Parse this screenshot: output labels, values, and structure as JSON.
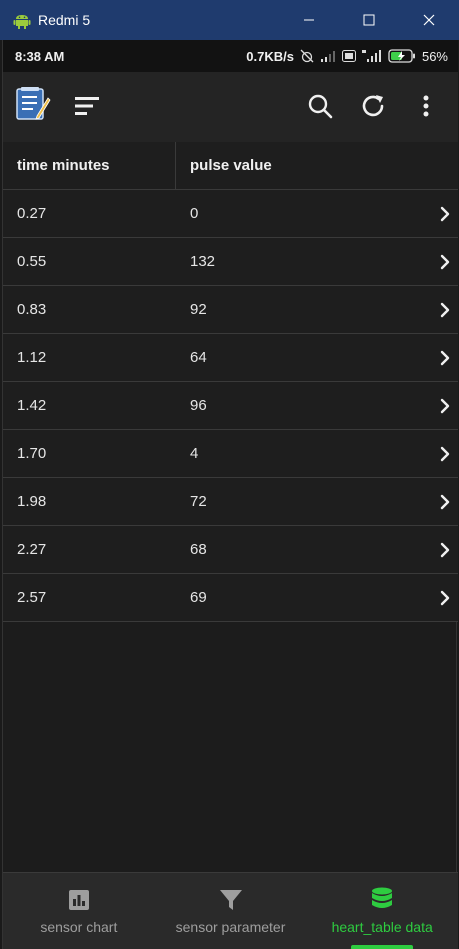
{
  "window": {
    "title": "Redmi 5",
    "icon": "android-icon",
    "controls": [
      "minimize-icon",
      "maximize-icon",
      "close-icon"
    ]
  },
  "status_bar": {
    "time": "8:38 AM",
    "speed": "0.7KB/s",
    "battery": "56%"
  },
  "app_bar": {
    "icons": [
      "app-logo-icon",
      "sort-menu-icon",
      "search-icon",
      "refresh-icon",
      "more-vert-icon"
    ]
  },
  "table": {
    "headers": [
      "time minutes",
      "pulse value"
    ],
    "rows": [
      [
        "0.27",
        "0"
      ],
      [
        "0.55",
        "132"
      ],
      [
        "0.83",
        "92"
      ],
      [
        "1.12",
        "64"
      ],
      [
        "1.42",
        "96"
      ],
      [
        "1.70",
        "4"
      ],
      [
        "1.98",
        "72"
      ],
      [
        "2.27",
        "68"
      ],
      [
        "2.57",
        "69"
      ]
    ]
  },
  "bottom_nav": {
    "items": [
      {
        "label": "sensor chart",
        "icon": "bar-chart-icon"
      },
      {
        "label": "sensor parameter",
        "icon": "filter-icon"
      },
      {
        "label": "heart_table data",
        "icon": "database-icon",
        "active": true
      }
    ],
    "active_color": "#2ecc40"
  }
}
